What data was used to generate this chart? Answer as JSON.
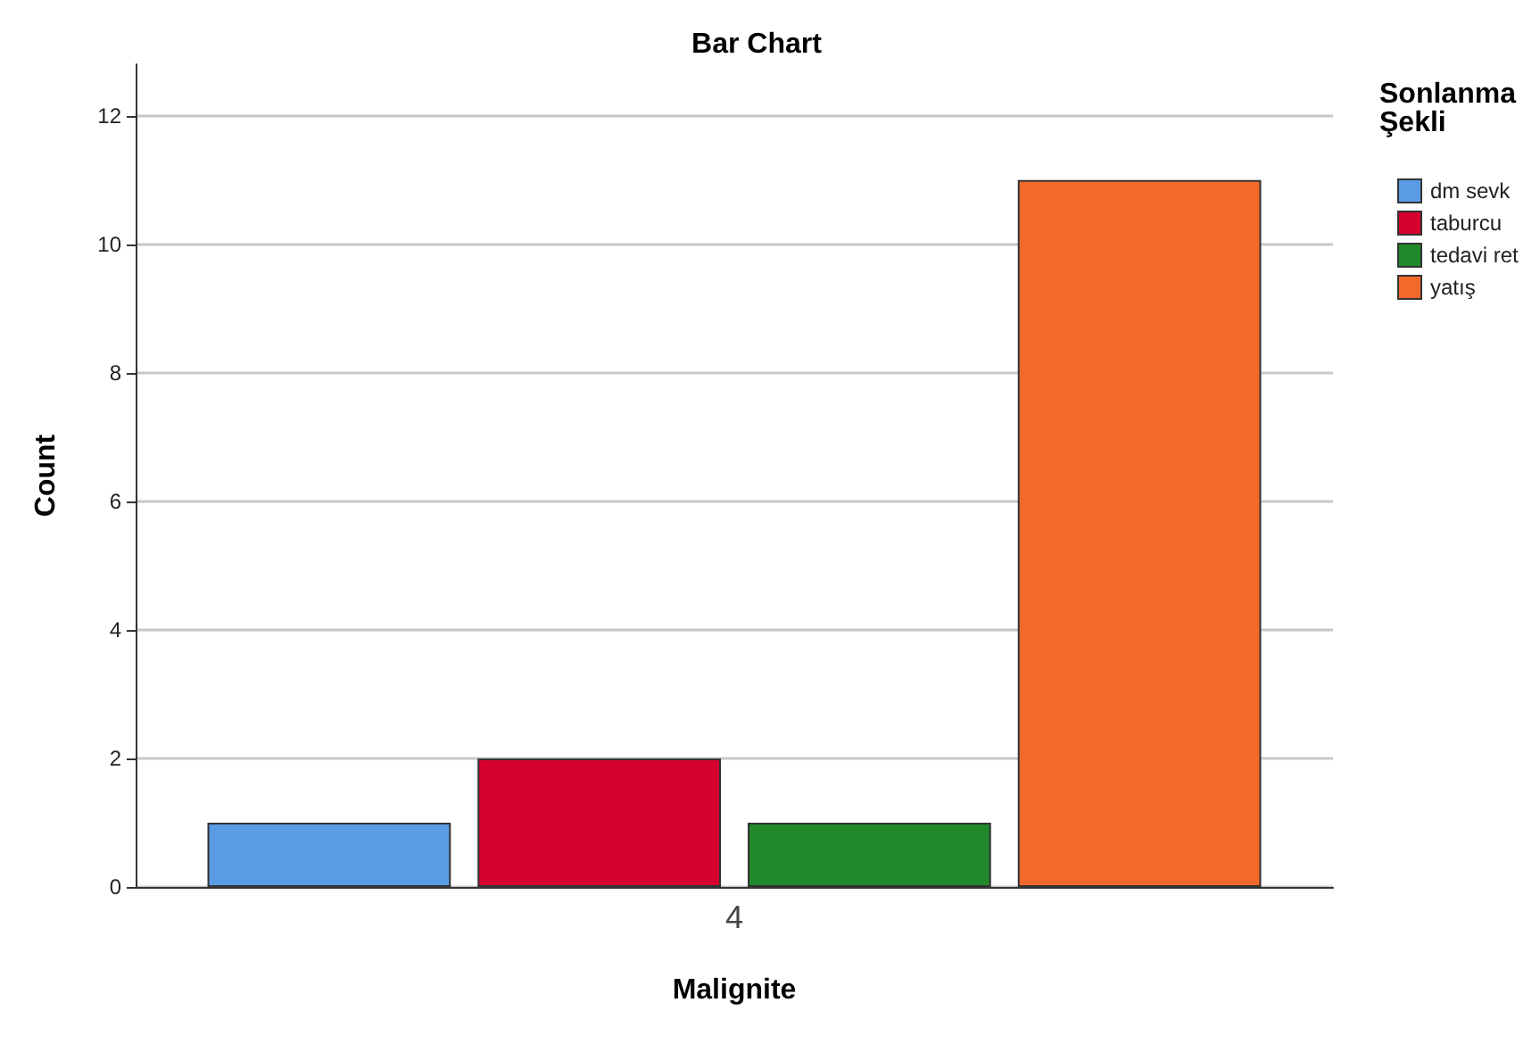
{
  "chart_data": {
    "type": "bar",
    "title": "Bar Chart",
    "xlabel": "Malignite",
    "ylabel": "Count",
    "legend_title": "Sonlanma Şekli",
    "categories": [
      "4"
    ],
    "series": [
      {
        "name": "dm sevk",
        "color": "#5a9be6",
        "values": [
          1
        ]
      },
      {
        "name": "taburcu",
        "color": "#d6002f",
        "values": [
          2
        ]
      },
      {
        "name": "tedavi ret",
        "color": "#208a2a",
        "values": [
          1
        ]
      },
      {
        "name": "yatış",
        "color": "#f26a2b",
        "values": [
          11
        ]
      }
    ],
    "ylim": [
      0,
      12.8
    ],
    "yticks": [
      0,
      2,
      4,
      6,
      8,
      10,
      12
    ],
    "grid": "y",
    "legend": "top right"
  }
}
